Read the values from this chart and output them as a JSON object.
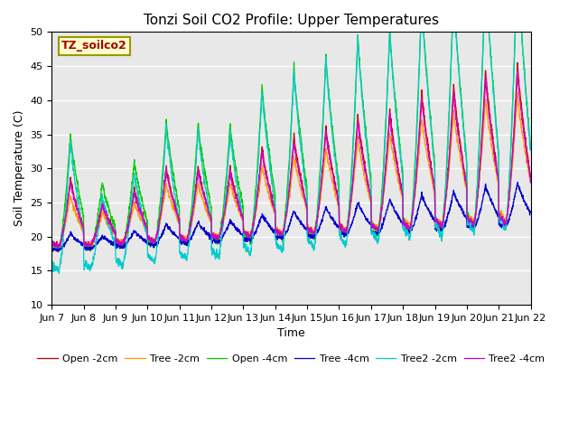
{
  "title": "Tonzi Soil CO2 Profile: Upper Temperatures",
  "xlabel": "Time",
  "ylabel": "Soil Temperature (C)",
  "watermark": "TZ_soilco2",
  "ylim": [
    10,
    50
  ],
  "yticks": [
    10,
    15,
    20,
    25,
    30,
    35,
    40,
    45,
    50
  ],
  "x_labels": [
    "Jun 7",
    "Jun 8",
    "Jun 9",
    "Jun 10",
    "Jun 11",
    "Jun 12",
    "Jun 13",
    "Jun 14",
    "Jun 15",
    "Jun 16",
    "Jun 17",
    "Jun 18",
    "Jun 19",
    "Jun 20",
    "Jun 21",
    "Jun 22"
  ],
  "legend_entries": [
    "Open -2cm",
    "Tree -2cm",
    "Open -4cm",
    "Tree -4cm",
    "Tree2 -2cm",
    "Tree2 -4cm"
  ],
  "line_colors": [
    "#cc0000",
    "#ff9900",
    "#00cc00",
    "#0000cc",
    "#00cccc",
    "#cc00cc"
  ],
  "bg_color": "#e8e8e8",
  "n_days": 15,
  "n_points_per_day": 144,
  "figsize": [
    6.4,
    4.8
  ],
  "dpi": 100
}
